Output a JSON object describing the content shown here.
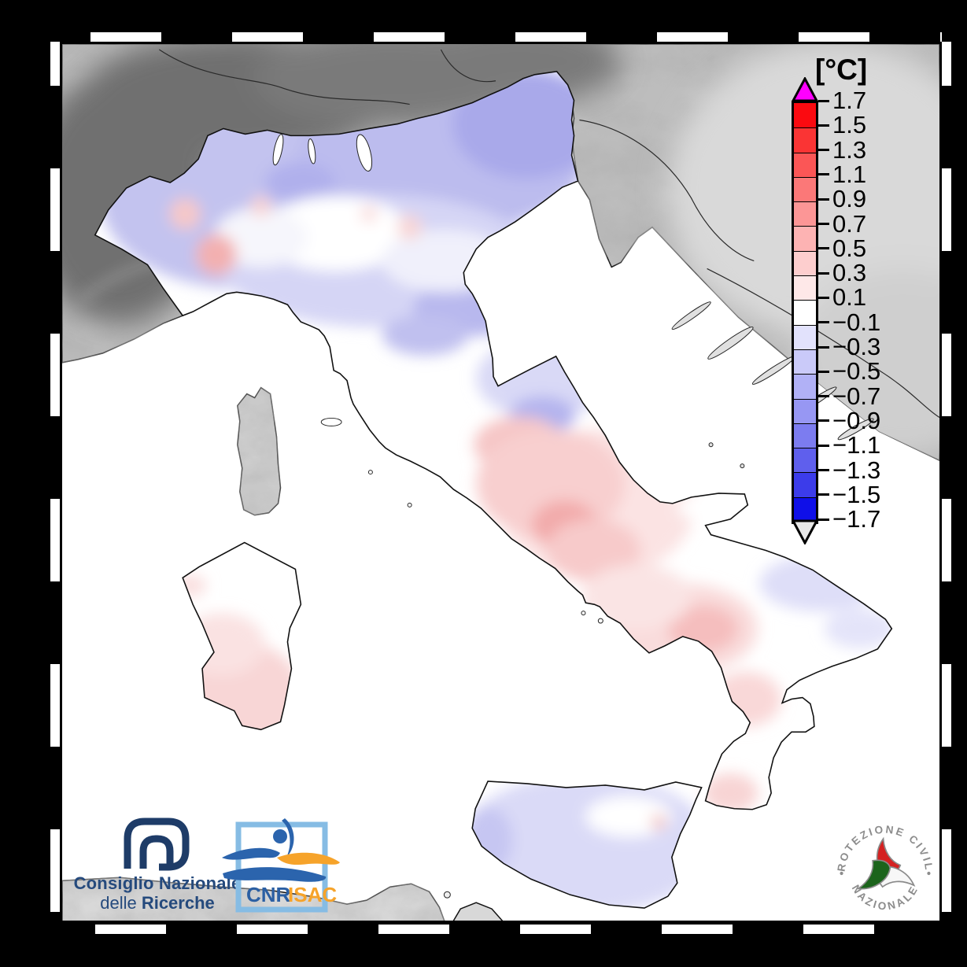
{
  "figure": {
    "type": "temperature-anomaly-map",
    "region": "Italy"
  },
  "colorbar": {
    "title": "[°C]",
    "tick_labels": [
      "1.7",
      "1.5",
      "1.3",
      "1.1",
      "0.9",
      "0.7",
      "0.5",
      "0.3",
      "0.1",
      "−0.1",
      "−0.3",
      "−0.5",
      "−0.7",
      "−0.9",
      "−1.1",
      "−1.3",
      "−1.5",
      "−1.7"
    ],
    "segment_colors": [
      "#fb0a10",
      "#fa3434",
      "#fb5656",
      "#fb7878",
      "#fc9696",
      "#fdb3b3",
      "#fdcece",
      "#fee8e8",
      "#ffffff",
      "#e2e2fc",
      "#cacaf9",
      "#b1b1f6",
      "#9797f3",
      "#7c7cf0",
      "#5f5fed",
      "#3c3cea",
      "#0f0fe8"
    ],
    "over_arrow_color": "#ff00ff",
    "under_arrow_color": "#e8e8e8",
    "outline_color": "#000000"
  },
  "map": {
    "sea_color": "#ffffff",
    "terrain_color": "#bdbdbd",
    "alps_shade_color": "#7d7d7d",
    "coastline_color": "#111111",
    "anomaly_negative_color": "#b9b9f3",
    "anomaly_neutral_color": "#ffffff",
    "anomaly_positive_color": "#f6bcbc"
  },
  "logos": {
    "cnr": {
      "name_line1": "Consiglio Nazionale",
      "name_line2_regular": "delle ",
      "name_line2_bold": "Ricerche"
    },
    "cnr_isac": {
      "label_cnr": "CNR",
      "label_isac": "ISAC"
    },
    "protezione_civile": {
      "arc_top": "PROTEZIONE CIVILE",
      "arc_bottom": "NAZIONALE"
    }
  }
}
